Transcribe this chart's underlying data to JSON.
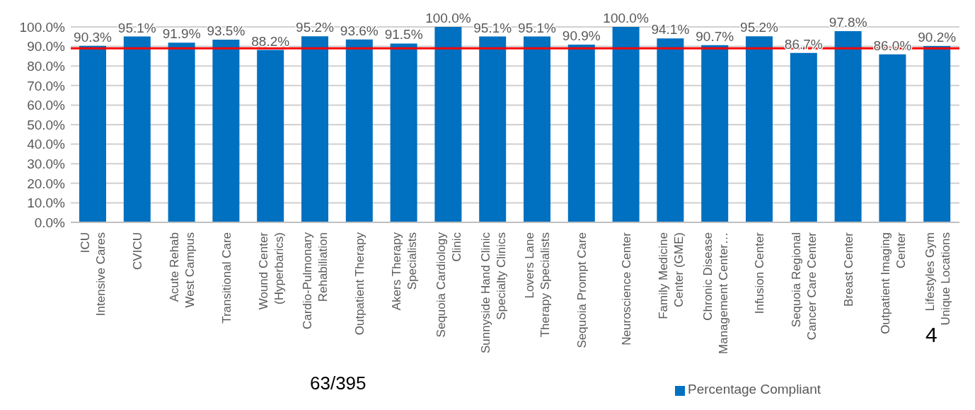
{
  "chart_data": {
    "type": "bar",
    "categories": [
      "ICU\nIntensive Cares",
      "CVICU",
      "Acute Rehab\nWest Campus",
      "Transitional Care",
      "Wound Center\n(Hyperbarics)",
      "Cardio-Pulmonary\nRehabiliation",
      "Outpatient Therapy",
      "Akers Therapy\nSpecialists",
      "Sequoia Cardiology\nClinic",
      "Sunnyside Hand Clinic\nSpecialty Clinics",
      "Lovers Lane\nTherapy Specialists",
      "Sequoia Prompt Care",
      "Neuroscience Center",
      "Family Medicine\nCenter (GME)",
      "Chronic Disease\nManagement Center…",
      "Infusion Center",
      "Sequoia Regional\nCancer Care Center",
      "Breast Center",
      "Outpatient Imaging\nCenter",
      "Lifestyles Gym\nUnique Locations"
    ],
    "series": [
      {
        "name": "Percentage Compliant",
        "color": "#0070c0",
        "values": [
          90.3,
          95.1,
          91.9,
          93.5,
          88.2,
          95.2,
          93.6,
          91.5,
          100.0,
          95.1,
          95.1,
          90.9,
          100.0,
          94.1,
          90.7,
          95.2,
          86.7,
          97.8,
          86.0,
          90.2
        ]
      }
    ],
    "ylim": [
      0,
      100
    ],
    "yticks": [
      {
        "value": 0,
        "label": "0.0%"
      },
      {
        "value": 10,
        "label": "10.0%"
      },
      {
        "value": 20,
        "label": "20.0%"
      },
      {
        "value": 30,
        "label": "30.0%"
      },
      {
        "value": 40,
        "label": "40.0%"
      },
      {
        "value": 50,
        "label": "50.0%"
      },
      {
        "value": 60,
        "label": "60.0%"
      },
      {
        "value": 70,
        "label": "70.0%"
      },
      {
        "value": 80,
        "label": "80.0%"
      },
      {
        "value": 90,
        "label": "90.0%"
      },
      {
        "value": 100,
        "label": "100.0%"
      }
    ],
    "grid": "y",
    "value_labels": [
      "90.3%",
      "95.1%",
      "91.9%",
      "93.5%",
      "88.2%",
      "95.2%",
      "93.6%",
      "91.5%",
      "100.0%",
      "95.1%",
      "95.1%",
      "90.9%",
      "100.0%",
      "94.1%",
      "90.7%",
      "95.2%",
      "86.7%",
      "97.8%",
      "86.0%",
      "90.2%"
    ],
    "ref_lines": [
      {
        "axis": "y",
        "value": 89,
        "color": "#ff0000"
      }
    ],
    "legend": "bottom",
    "annotations": [
      "63/395",
      "4"
    ]
  }
}
